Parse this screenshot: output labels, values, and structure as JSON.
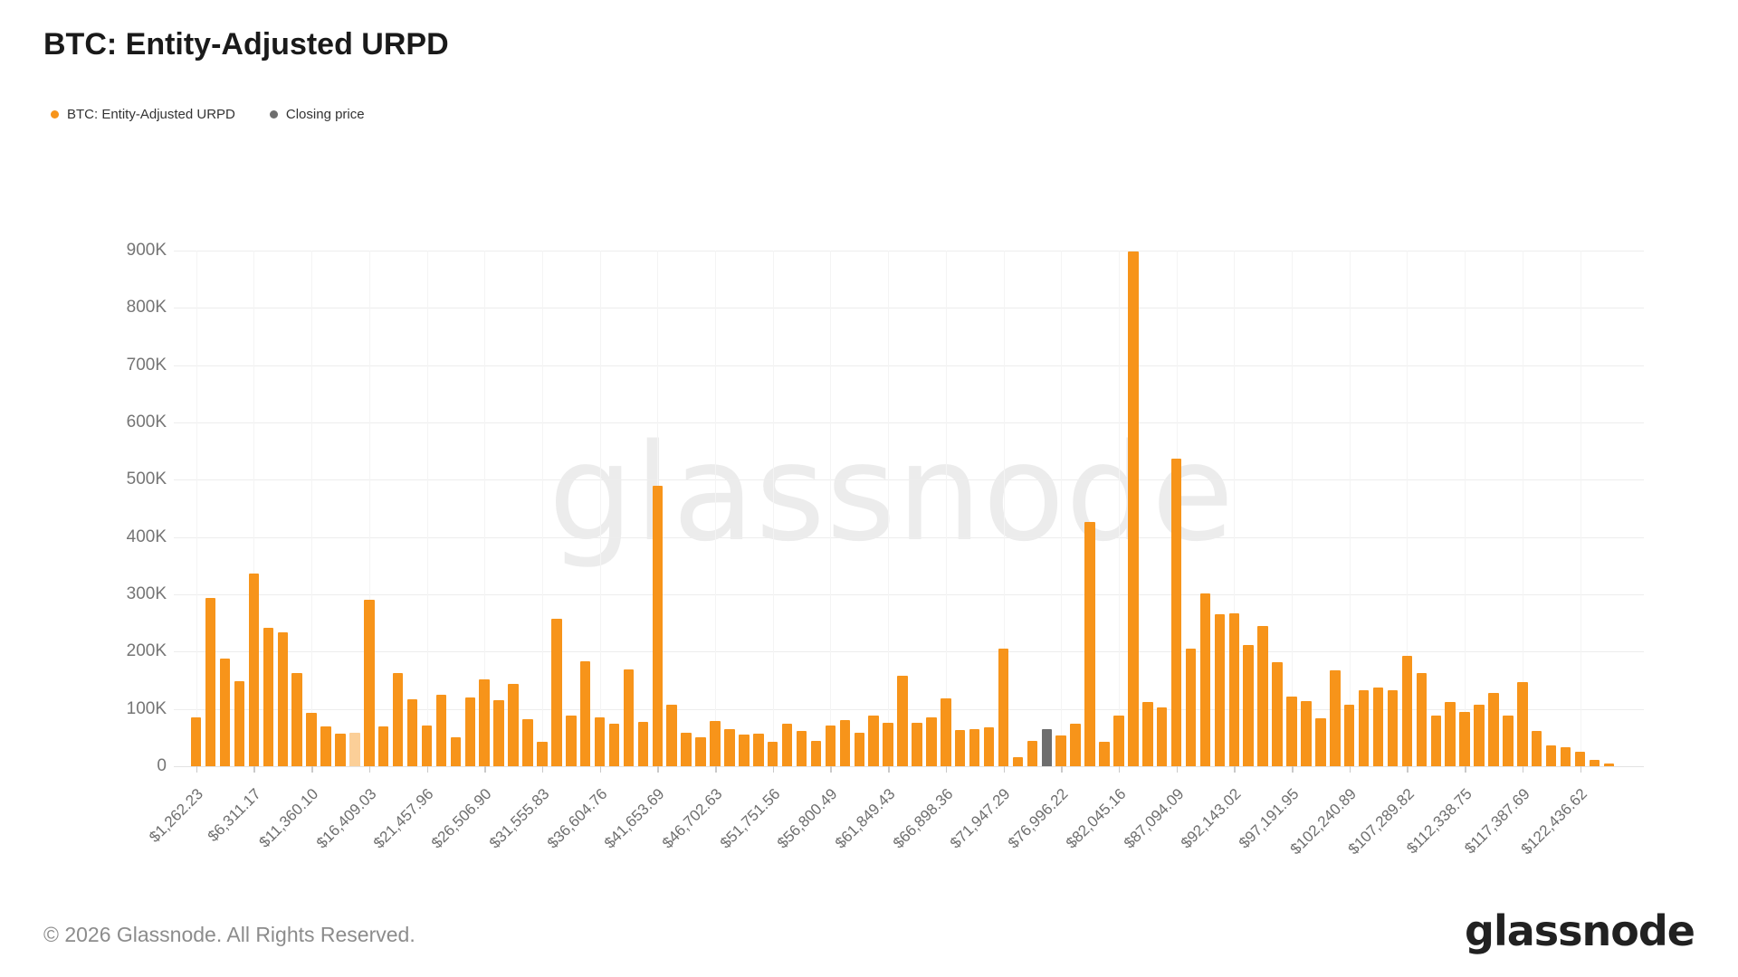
{
  "title": "BTC: Entity-Adjusted URPD",
  "watermark": "glassnode",
  "legend": [
    {
      "label": "BTC: Entity-Adjusted URPD",
      "color": "#f7941a"
    },
    {
      "label": "Closing price",
      "color": "#6e6e6e"
    }
  ],
  "footer": {
    "copyright": "© 2026 Glassnode. All Rights Reserved.",
    "logo": "glassnode"
  },
  "colors": {
    "bar_orange": "#f7941a",
    "bar_gray": "#6e6e6e",
    "gridline": "#ededed",
    "axis_text": "#757575",
    "watermark": "#ececec"
  },
  "chart_data": {
    "type": "bar",
    "title": "BTC: Entity-Adjusted URPD",
    "xlabel": "",
    "ylabel": "",
    "ylim": [
      0,
      950000
    ],
    "grid": true,
    "legend_position": "top-left",
    "y_tick_labels": [
      "0",
      "100K",
      "200K",
      "300K",
      "400K",
      "500K",
      "600K",
      "700K",
      "800K",
      "900K"
    ],
    "x_tick_labels": [
      "$1,262.23",
      "$6,311.17",
      "$11,360.10",
      "$16,409.03",
      "$21,457.96",
      "$26,506.90",
      "$31,555.83",
      "$36,604.76",
      "$41,653.69",
      "$46,702.63",
      "$51,751.56",
      "$56,800.49",
      "$61,849.43",
      "$66,898.36",
      "$71,947.29",
      "$76,996.22",
      "$82,045.16",
      "$87,094.09",
      "$92,143.02",
      "$97,191.95",
      "$102,240.89",
      "$107,289.82",
      "$112,338.75",
      "$117,387.69",
      "$122,436.62"
    ],
    "x_tick_every_n_bars": 4,
    "price_bucket_size_usd": 1262.23,
    "series_name": "BTC: Entity-Adjusted URPD",
    "closing_price_bar_index": 59,
    "light_bar_index": 11,
    "values_unit": "BTC (thousands)",
    "values_thousand_btc": [
      85,
      294,
      188,
      148,
      337,
      242,
      234,
      163,
      93,
      69,
      57,
      59,
      291,
      69,
      163,
      117,
      71,
      125,
      50,
      120,
      151,
      116,
      144,
      82,
      42,
      258,
      89,
      183,
      85,
      74,
      169,
      77,
      490,
      108,
      59,
      50,
      79,
      65,
      56,
      57,
      43,
      75,
      62,
      45,
      71,
      80,
      58,
      89,
      76,
      158,
      76,
      85,
      118,
      63,
      64,
      68,
      206,
      16,
      45,
      65,
      54,
      74,
      426,
      43,
      89,
      898,
      112,
      103,
      537,
      205,
      301,
      266,
      267,
      212,
      244,
      181,
      122,
      114,
      84,
      167,
      107,
      133,
      137,
      132,
      192,
      163,
      89,
      112,
      94,
      108,
      128,
      89,
      147,
      61,
      36,
      33,
      26,
      11,
      5
    ]
  }
}
